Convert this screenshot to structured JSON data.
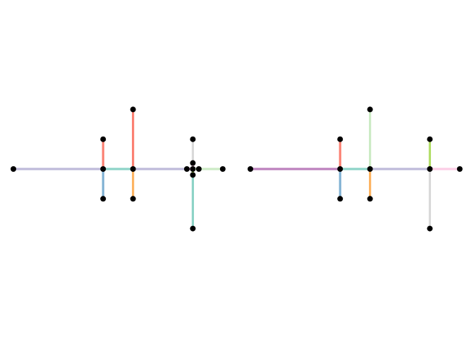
{
  "figure": {
    "panels": [
      {
        "name": "panel-left",
        "edges": [
          {
            "from": "L1",
            "to": "C1",
            "color": "#bebada"
          },
          {
            "from": "C1",
            "to": "C2",
            "color": "#8dd3c7"
          },
          {
            "from": "C2",
            "to": "C3",
            "color": "#bebada"
          },
          {
            "from": "C1",
            "to": "U1",
            "color": "#fb8072"
          },
          {
            "from": "C1",
            "to": "D1",
            "color": "#80b1d3"
          },
          {
            "from": "C2",
            "to": "U2",
            "color": "#fb8072"
          },
          {
            "from": "C2",
            "to": "D2",
            "color": "#fdb462"
          },
          {
            "from": "C3",
            "to": "R1",
            "color": "#ccebc5"
          },
          {
            "from": "C3",
            "to": "U3",
            "color": "#d9d9d9"
          },
          {
            "from": "C3",
            "to": "D3",
            "color": "#8dd3c7"
          },
          {
            "from": "C3",
            "to": "q1",
            "color": "#fccde5"
          },
          {
            "from": "C3",
            "to": "q2",
            "color": "#bc80bd"
          },
          {
            "from": "C3",
            "to": "q3",
            "color": "#b3de69"
          }
        ],
        "nodes": [
          {
            "id": "L1",
            "x": 0,
            "y": 0
          },
          {
            "id": "C1",
            "x": 3,
            "y": 0
          },
          {
            "id": "C2",
            "x": 4,
            "y": 0
          },
          {
            "id": "C3",
            "x": 6,
            "y": 0
          },
          {
            "id": "R1",
            "x": 7,
            "y": 0
          },
          {
            "id": "U1",
            "x": 3,
            "y": 1
          },
          {
            "id": "D1",
            "x": 3,
            "y": -1
          },
          {
            "id": "U2",
            "x": 4,
            "y": 2
          },
          {
            "id": "D2",
            "x": 4,
            "y": -1
          },
          {
            "id": "U3",
            "x": 6,
            "y": 1
          },
          {
            "id": "D3",
            "x": 6,
            "y": -2
          },
          {
            "id": "q1",
            "x": 6,
            "y": 0.2
          },
          {
            "id": "q2",
            "x": 5.8,
            "y": 0
          },
          {
            "id": "q3",
            "x": 6,
            "y": -0.2
          },
          {
            "id": "q4",
            "x": 6.2,
            "y": 0
          }
        ]
      },
      {
        "name": "panel-right",
        "edges": [
          {
            "from": "L1",
            "to": "C1",
            "color": "#bc80bd"
          },
          {
            "from": "C1",
            "to": "C2",
            "color": "#8dd3c7"
          },
          {
            "from": "C2",
            "to": "C3",
            "color": "#bebada"
          },
          {
            "from": "C3",
            "to": "R1",
            "color": "#fccde5"
          },
          {
            "from": "C1",
            "to": "U1",
            "color": "#fb8072"
          },
          {
            "from": "C1",
            "to": "D1",
            "color": "#80b1d3"
          },
          {
            "from": "C2",
            "to": "U2",
            "color": "#ccebc5"
          },
          {
            "from": "C2",
            "to": "D2",
            "color": "#fdb462"
          },
          {
            "from": "C3",
            "to": "U3",
            "color": "#b3de69"
          },
          {
            "from": "C3",
            "to": "D3",
            "color": "#d9d9d9"
          }
        ],
        "nodes": [
          {
            "id": "L1",
            "x": 0,
            "y": 0
          },
          {
            "id": "C1",
            "x": 3,
            "y": 0
          },
          {
            "id": "C2",
            "x": 4,
            "y": 0
          },
          {
            "id": "C3",
            "x": 6,
            "y": 0
          },
          {
            "id": "R1",
            "x": 7,
            "y": 0
          },
          {
            "id": "U1",
            "x": 3,
            "y": 1
          },
          {
            "id": "D1",
            "x": 3,
            "y": -1
          },
          {
            "id": "U2",
            "x": 4,
            "y": 2
          },
          {
            "id": "D2",
            "x": 4,
            "y": -1
          },
          {
            "id": "U3",
            "x": 6,
            "y": 1
          },
          {
            "id": "D3",
            "x": 6,
            "y": -2
          }
        ]
      }
    ],
    "node_color": "#000000"
  }
}
